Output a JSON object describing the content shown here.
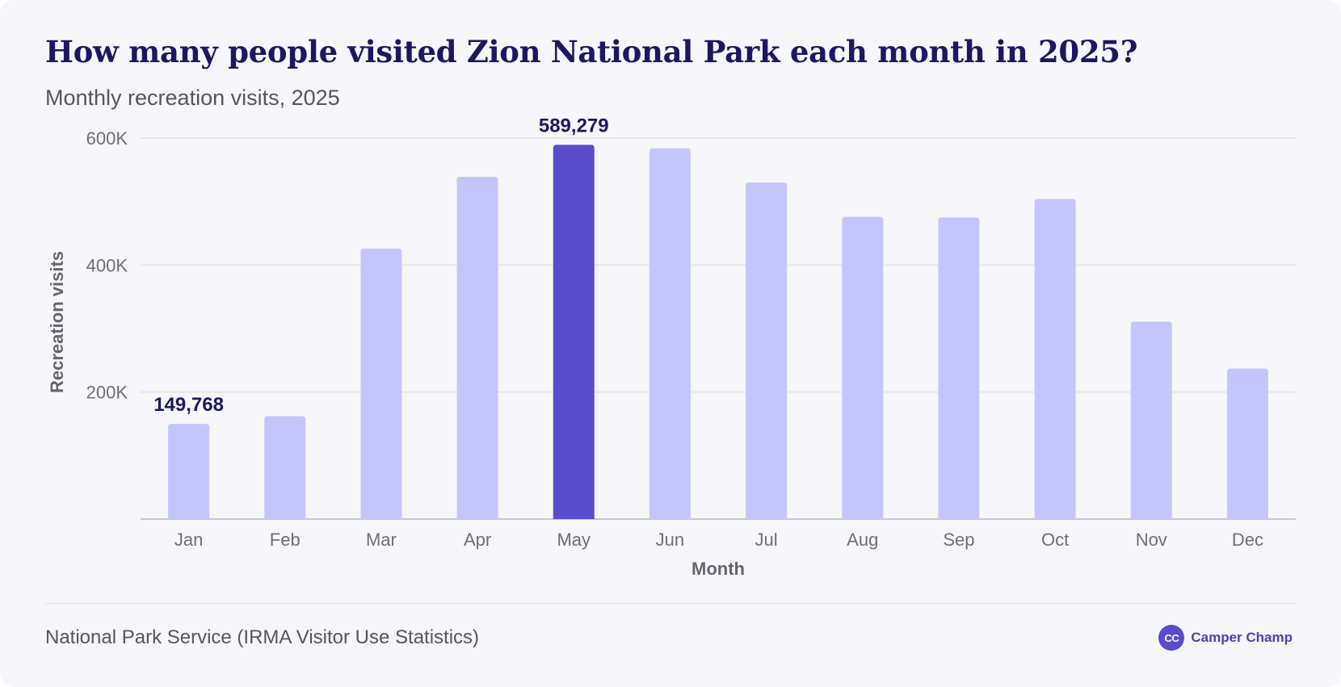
{
  "header": {
    "title": "How many people visited Zion National Park each month in 2025?",
    "subtitle": "Monthly recreation visits, 2025"
  },
  "footer": {
    "source": "National Park Service (IRMA Visitor Use Statistics)",
    "brand_logo_text": "CC",
    "brand_name": "Camper Champ"
  },
  "colors": {
    "bar": "#c4c6fb",
    "bar_highlight": "#5b4ccc",
    "grid": "#e2e1ea",
    "baseline": "#b9b8c4"
  },
  "chart_data": {
    "type": "bar",
    "title": "How many people visited Zion National Park each month in 2025?",
    "subtitle": "Monthly recreation visits, 2025",
    "xlabel": "Month",
    "ylabel": "Recreation visits",
    "ylim": [
      0,
      600000
    ],
    "yticks": [
      200000,
      400000,
      600000
    ],
    "ytick_labels": [
      "200K",
      "400K",
      "600K"
    ],
    "categories": [
      "Jan",
      "Feb",
      "Mar",
      "Apr",
      "May",
      "Jun",
      "Jul",
      "Aug",
      "Sep",
      "Oct",
      "Nov",
      "Dec"
    ],
    "values": [
      149768,
      162000,
      426000,
      539000,
      589279,
      584000,
      530000,
      476000,
      475000,
      504000,
      311000,
      237000
    ],
    "highlight_category": "May",
    "data_labels": [
      {
        "category": "Jan",
        "text": "149,768"
      },
      {
        "category": "May",
        "text": "589,279"
      }
    ],
    "grid": true,
    "legend": "none"
  }
}
